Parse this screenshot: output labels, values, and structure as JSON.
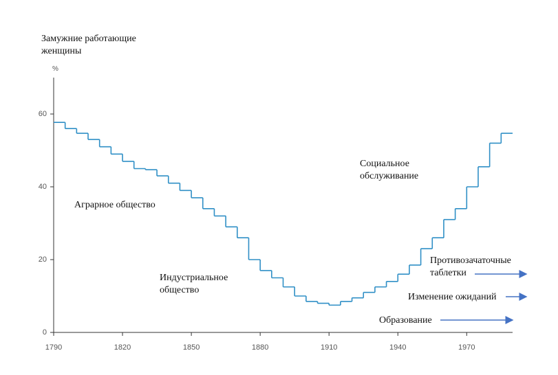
{
  "chart_data": {
    "type": "step",
    "title": "Замужние работающие женщины",
    "y_label": "%",
    "x": [
      1790,
      1795,
      1800,
      1805,
      1810,
      1815,
      1820,
      1825,
      1830,
      1835,
      1840,
      1845,
      1850,
      1855,
      1860,
      1865,
      1870,
      1875,
      1880,
      1885,
      1890,
      1895,
      1900,
      1905,
      1910,
      1915,
      1920,
      1925,
      1930,
      1935,
      1940,
      1945,
      1950,
      1955,
      1960,
      1965,
      1970,
      1975,
      1980,
      1985
    ],
    "values": [
      57.7,
      56,
      54.7,
      53,
      51,
      49,
      47,
      45,
      44.7,
      43,
      41,
      39,
      37,
      34,
      32,
      29,
      26,
      20,
      17,
      15,
      12.5,
      10,
      8.5,
      8,
      7.5,
      8.5,
      9.5,
      11,
      12.5,
      14,
      16,
      18.5,
      23,
      26,
      31,
      34,
      40,
      45.5,
      52,
      54.7
    ],
    "color": "#2f8fc6",
    "xlim": [
      1790,
      1990
    ],
    "xticks": [
      1790,
      1820,
      1850,
      1880,
      1910,
      1940,
      1970
    ],
    "ylim": [
      0,
      70
    ],
    "yticks": [
      0,
      20,
      40,
      60
    ],
    "annotations": [
      "Аграрное общество",
      "Индустриальное общество",
      "Социальное обслуживание",
      "Противозачаточные таблетки",
      "Изменение ожиданий",
      "Образование"
    ]
  }
}
